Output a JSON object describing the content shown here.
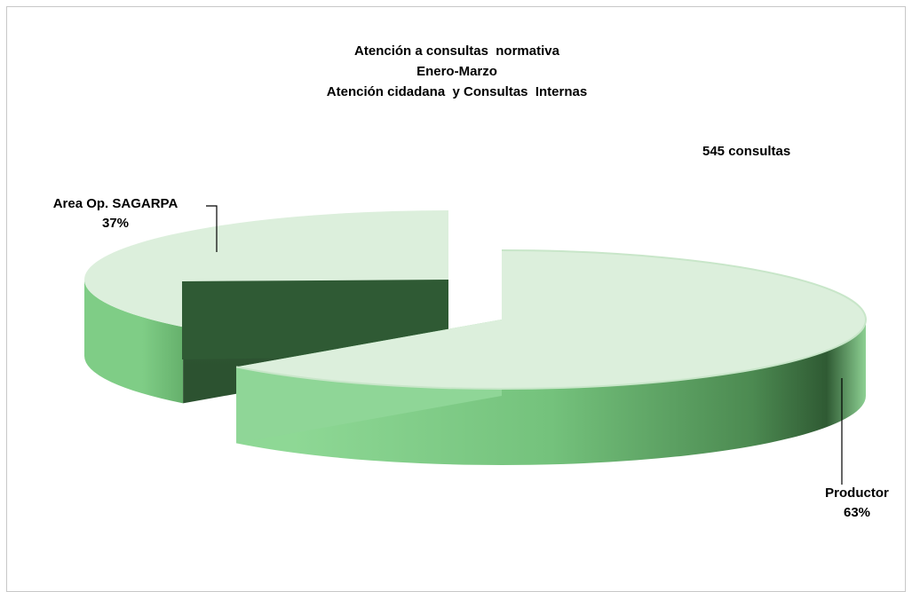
{
  "chart_data": {
    "type": "pie",
    "style": "3d-exploded",
    "title_lines": [
      "Atención a consultas  normativa",
      "Enero-Marzo",
      "Atención cidadana  y Consultas  Internas"
    ],
    "annotation": "545 consultas",
    "slices": [
      {
        "label": "Area Op. SAGARPA",
        "percent_label": "37%",
        "value": 37,
        "color": "#2f5a34"
      },
      {
        "label": "Productor",
        "percent_label": "63%",
        "value": 63,
        "color": "#7ccd85"
      }
    ],
    "legend": "none",
    "data_labels": "outside-with-leader-lines"
  }
}
